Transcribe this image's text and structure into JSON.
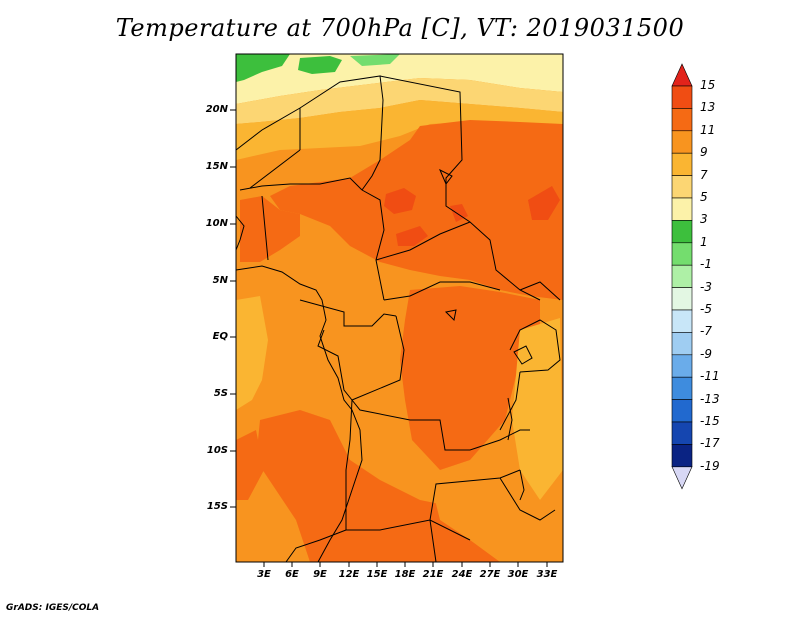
{
  "title": "Temperature at 700hPa [C], VT: 2019031500",
  "credit": "GrADS: IGES/COLA",
  "map": {
    "lat_labels": [
      "20N",
      "15N",
      "10N",
      "5N",
      "EQ",
      "5S",
      "10S",
      "15S"
    ],
    "lon_labels": [
      "3E",
      "6E",
      "9E",
      "12E",
      "15E",
      "18E",
      "21E",
      "24E",
      "27E",
      "30E",
      "33E"
    ]
  },
  "colorbar": {
    "labels": [
      "15",
      "13",
      "11",
      "9",
      "7",
      "5",
      "3",
      "1",
      "-1",
      "-3",
      "-5",
      "-7",
      "-9",
      "-11",
      "-13",
      "-15",
      "-17",
      "-19"
    ],
    "colors": [
      "#e2231b",
      "#f04d13",
      "#f56a14",
      "#f8941f",
      "#fab532",
      "#fcd673",
      "#fcf2a9",
      "#3dbf3d",
      "#74dd6e",
      "#aef0a6",
      "#e3f7e3",
      "#c8e6f8",
      "#9fcdf2",
      "#6aacea",
      "#3e8cde",
      "#2169cf",
      "#1546b0",
      "#0a2383",
      "#06135a",
      "#d8d8f5"
    ],
    "level_boundaries": [
      15,
      13,
      11,
      9,
      7,
      5,
      3,
      1,
      -1,
      -3,
      -5,
      -7,
      -9,
      -11,
      -13,
      -15,
      -17,
      -19
    ]
  },
  "field_colors": {
    "c_11_13": "#f56a14",
    "c_13_15": "#f04d13",
    "c_9_11": "#f8941f",
    "c_7_9": "#fab532",
    "c_5_7": "#fcd673",
    "c_3_5": "#fcf2a9",
    "c_1_3": "#3dbf3d"
  }
}
